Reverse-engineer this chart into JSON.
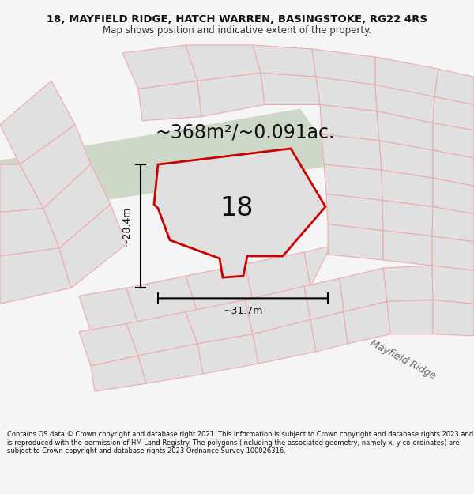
{
  "title_line1": "18, MAYFIELD RIDGE, HATCH WARREN, BASINGSTOKE, RG22 4RS",
  "title_line2": "Map shows position and indicative extent of the property.",
  "area_text": "~368m²/~0.091ac.",
  "label_28": "~28.4m",
  "label_31": "~31.7m",
  "number_label": "18",
  "road_label": "Mayfield Ridge",
  "footer_text": "Contains OS data © Crown copyright and database right 2021. This information is subject to Crown copyright and database rights 2023 and is reproduced with the permission of HM Land Registry. The polygons (including the associated geometry, namely x, y co-ordinates) are subject to Crown copyright and database rights 2023 Ordnance Survey 100026316.",
  "bg_color": "#f5f5f5",
  "map_bg": "#ffffff",
  "road_fill": "#cdd8c8",
  "property_fill": "#f0f0f0",
  "property_edge": "#cc0000",
  "other_plots_edge": "#f0aaaa",
  "other_plots_fill": "#e0e0e0",
  "title_fontsize": 9.5,
  "subtitle_fontsize": 8.5,
  "area_fontsize": 17,
  "number_fontsize": 24,
  "dim_fontsize": 9,
  "road_fontsize": 9,
  "footer_fontsize": 6.0
}
